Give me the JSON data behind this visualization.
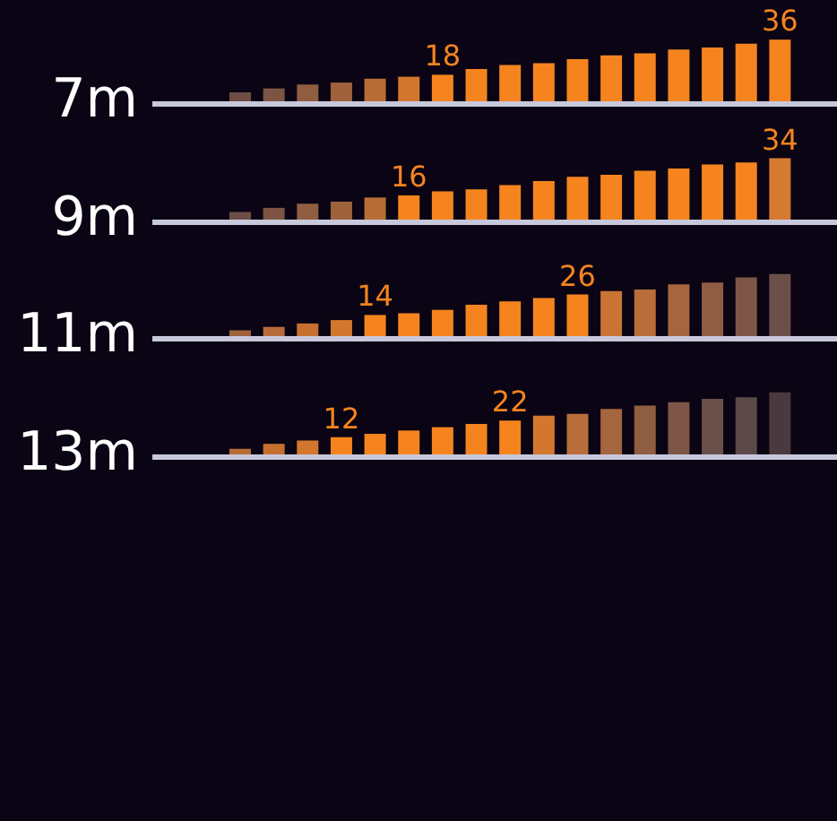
{
  "chart_data": [
    {
      "type": "bar",
      "ylabel": "7m",
      "categories": [
        null,
        null,
        null,
        null,
        null,
        null,
        null,
        null,
        null,
        null,
        null,
        null,
        null,
        null,
        null,
        null,
        null
      ],
      "values": [
        9,
        11,
        13,
        14,
        16,
        17,
        18,
        21,
        23,
        24,
        26,
        28,
        29,
        31,
        32,
        34,
        36
      ],
      "value_labels": [
        null,
        null,
        null,
        null,
        null,
        null,
        "18",
        null,
        null,
        null,
        null,
        null,
        null,
        null,
        null,
        null,
        "36"
      ],
      "colors": [
        "#6e4e44",
        "#7d5443",
        "#8f5d40",
        "#9e623d",
        "#b86d36",
        "#d3772f",
        "#f5841f",
        "#f5841f",
        "#f5841f",
        "#f5841f",
        "#f5841f",
        "#f5841f",
        "#f5841f",
        "#f5841f",
        "#f5841f",
        "#f5841f",
        "#f5841f"
      ],
      "ylim": [
        3,
        38
      ],
      "tick_labels": false
    },
    {
      "type": "bar",
      "ylabel": "9m",
      "categories": [
        null,
        null,
        null,
        null,
        null,
        null,
        null,
        null,
        null,
        null,
        null,
        null,
        null,
        null,
        null,
        null,
        null
      ],
      "values": [
        8,
        10,
        12,
        13,
        15,
        16,
        18,
        19,
        21,
        23,
        25,
        26,
        28,
        29,
        31,
        32,
        34
      ],
      "value_labels": [
        null,
        null,
        null,
        null,
        null,
        "16",
        null,
        null,
        null,
        null,
        null,
        null,
        null,
        null,
        null,
        null,
        "34"
      ],
      "colors": [
        "#6e4e44",
        "#7d5443",
        "#8f5d40",
        "#9e623d",
        "#b86d36",
        "#f5841f",
        "#f5841f",
        "#f5841f",
        "#f5841f",
        "#f5841f",
        "#f5841f",
        "#f5841f",
        "#f5841f",
        "#f5841f",
        "#f5841f",
        "#f5841f",
        "#d67a32"
      ],
      "ylim": [
        3,
        36
      ],
      "tick_labels": false
    },
    {
      "type": "bar",
      "ylabel": "11m",
      "categories": [
        null,
        null,
        null,
        null,
        null,
        null,
        null,
        null,
        null,
        null,
        null,
        null,
        null,
        null,
        null,
        null,
        null
      ],
      "values": [
        5,
        7,
        9,
        11,
        14,
        15,
        17,
        20,
        22,
        24,
        26,
        28,
        29,
        32,
        33,
        36,
        38
      ],
      "value_labels": [
        null,
        null,
        null,
        null,
        "14",
        null,
        null,
        null,
        null,
        null,
        "26",
        null,
        null,
        null,
        null,
        null,
        null
      ],
      "colors": [
        "#9e623d",
        "#b86a3a",
        "#c5702f",
        "#d3772f",
        "#f5841f",
        "#f5841f",
        "#f5841f",
        "#f5841f",
        "#f5841f",
        "#f5841f",
        "#f5841f",
        "#c97434",
        "#b86d3a",
        "#a5653e",
        "#8f5d42",
        "#7d5648",
        "#6b5049"
      ],
      "ylim": [
        0,
        40
      ],
      "tick_labels": false
    },
    {
      "type": "bar",
      "ylabel": "13m",
      "categories": [
        null,
        null,
        null,
        null,
        null,
        null,
        null,
        null,
        null,
        null,
        null,
        null,
        null,
        null,
        null,
        null,
        null
      ],
      "values": [
        5,
        8,
        10,
        12,
        14,
        16,
        18,
        20,
        22,
        25,
        26,
        29,
        31,
        33,
        35,
        36,
        39
      ],
      "value_labels": [
        null,
        null,
        null,
        "12",
        null,
        null,
        null,
        null,
        "22",
        null,
        null,
        null,
        null,
        null,
        null,
        null,
        null
      ],
      "colors": [
        "#b86d36",
        "#c5702f",
        "#d3772f",
        "#f5841f",
        "#f5841f",
        "#f5841f",
        "#f5841f",
        "#f5841f",
        "#f5841f",
        "#d3772f",
        "#b86d3a",
        "#a5653e",
        "#8f5d42",
        "#7d5648",
        "#6b5049",
        "#5c4a4a",
        "#4a3a40"
      ],
      "ylim": [
        0,
        41
      ],
      "tick_labels": false
    }
  ]
}
